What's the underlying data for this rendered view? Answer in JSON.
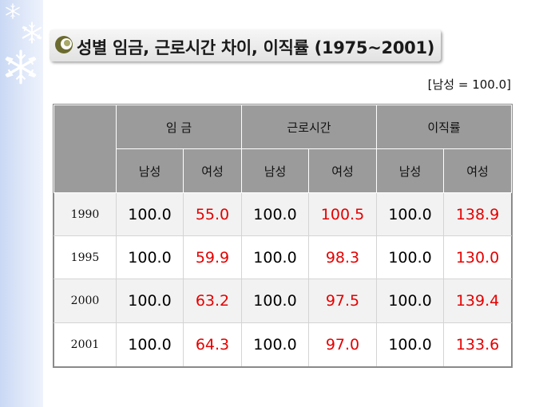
{
  "title": "성별 임금, 근로시간 차이, 이직률 (1975~2001)",
  "unit_note": "[남성 = 100.0]",
  "colors": {
    "header_bg": "#9b9b9b",
    "female_value": "#e60000",
    "side_band": "#c9d8f4"
  },
  "table": {
    "groups": [
      "임 금",
      "근로시간",
      "이직률"
    ],
    "subheaders": [
      "남성",
      "여성",
      "남성",
      "여성",
      "남성",
      "여성"
    ],
    "rows": [
      {
        "year": "1990",
        "values": [
          "100.0",
          "55.0",
          "100.0",
          "100.5",
          "100.0",
          "138.9"
        ]
      },
      {
        "year": "1995",
        "values": [
          "100.0",
          "59.9",
          "100.0",
          "98.3",
          "100.0",
          "130.0"
        ]
      },
      {
        "year": "2000",
        "values": [
          "100.0",
          "63.2",
          "100.0",
          "97.5",
          "100.0",
          "139.4"
        ]
      },
      {
        "year": "2001",
        "values": [
          "100.0",
          "64.3",
          "100.0",
          "97.0",
          "100.0",
          "133.6"
        ]
      }
    ]
  }
}
